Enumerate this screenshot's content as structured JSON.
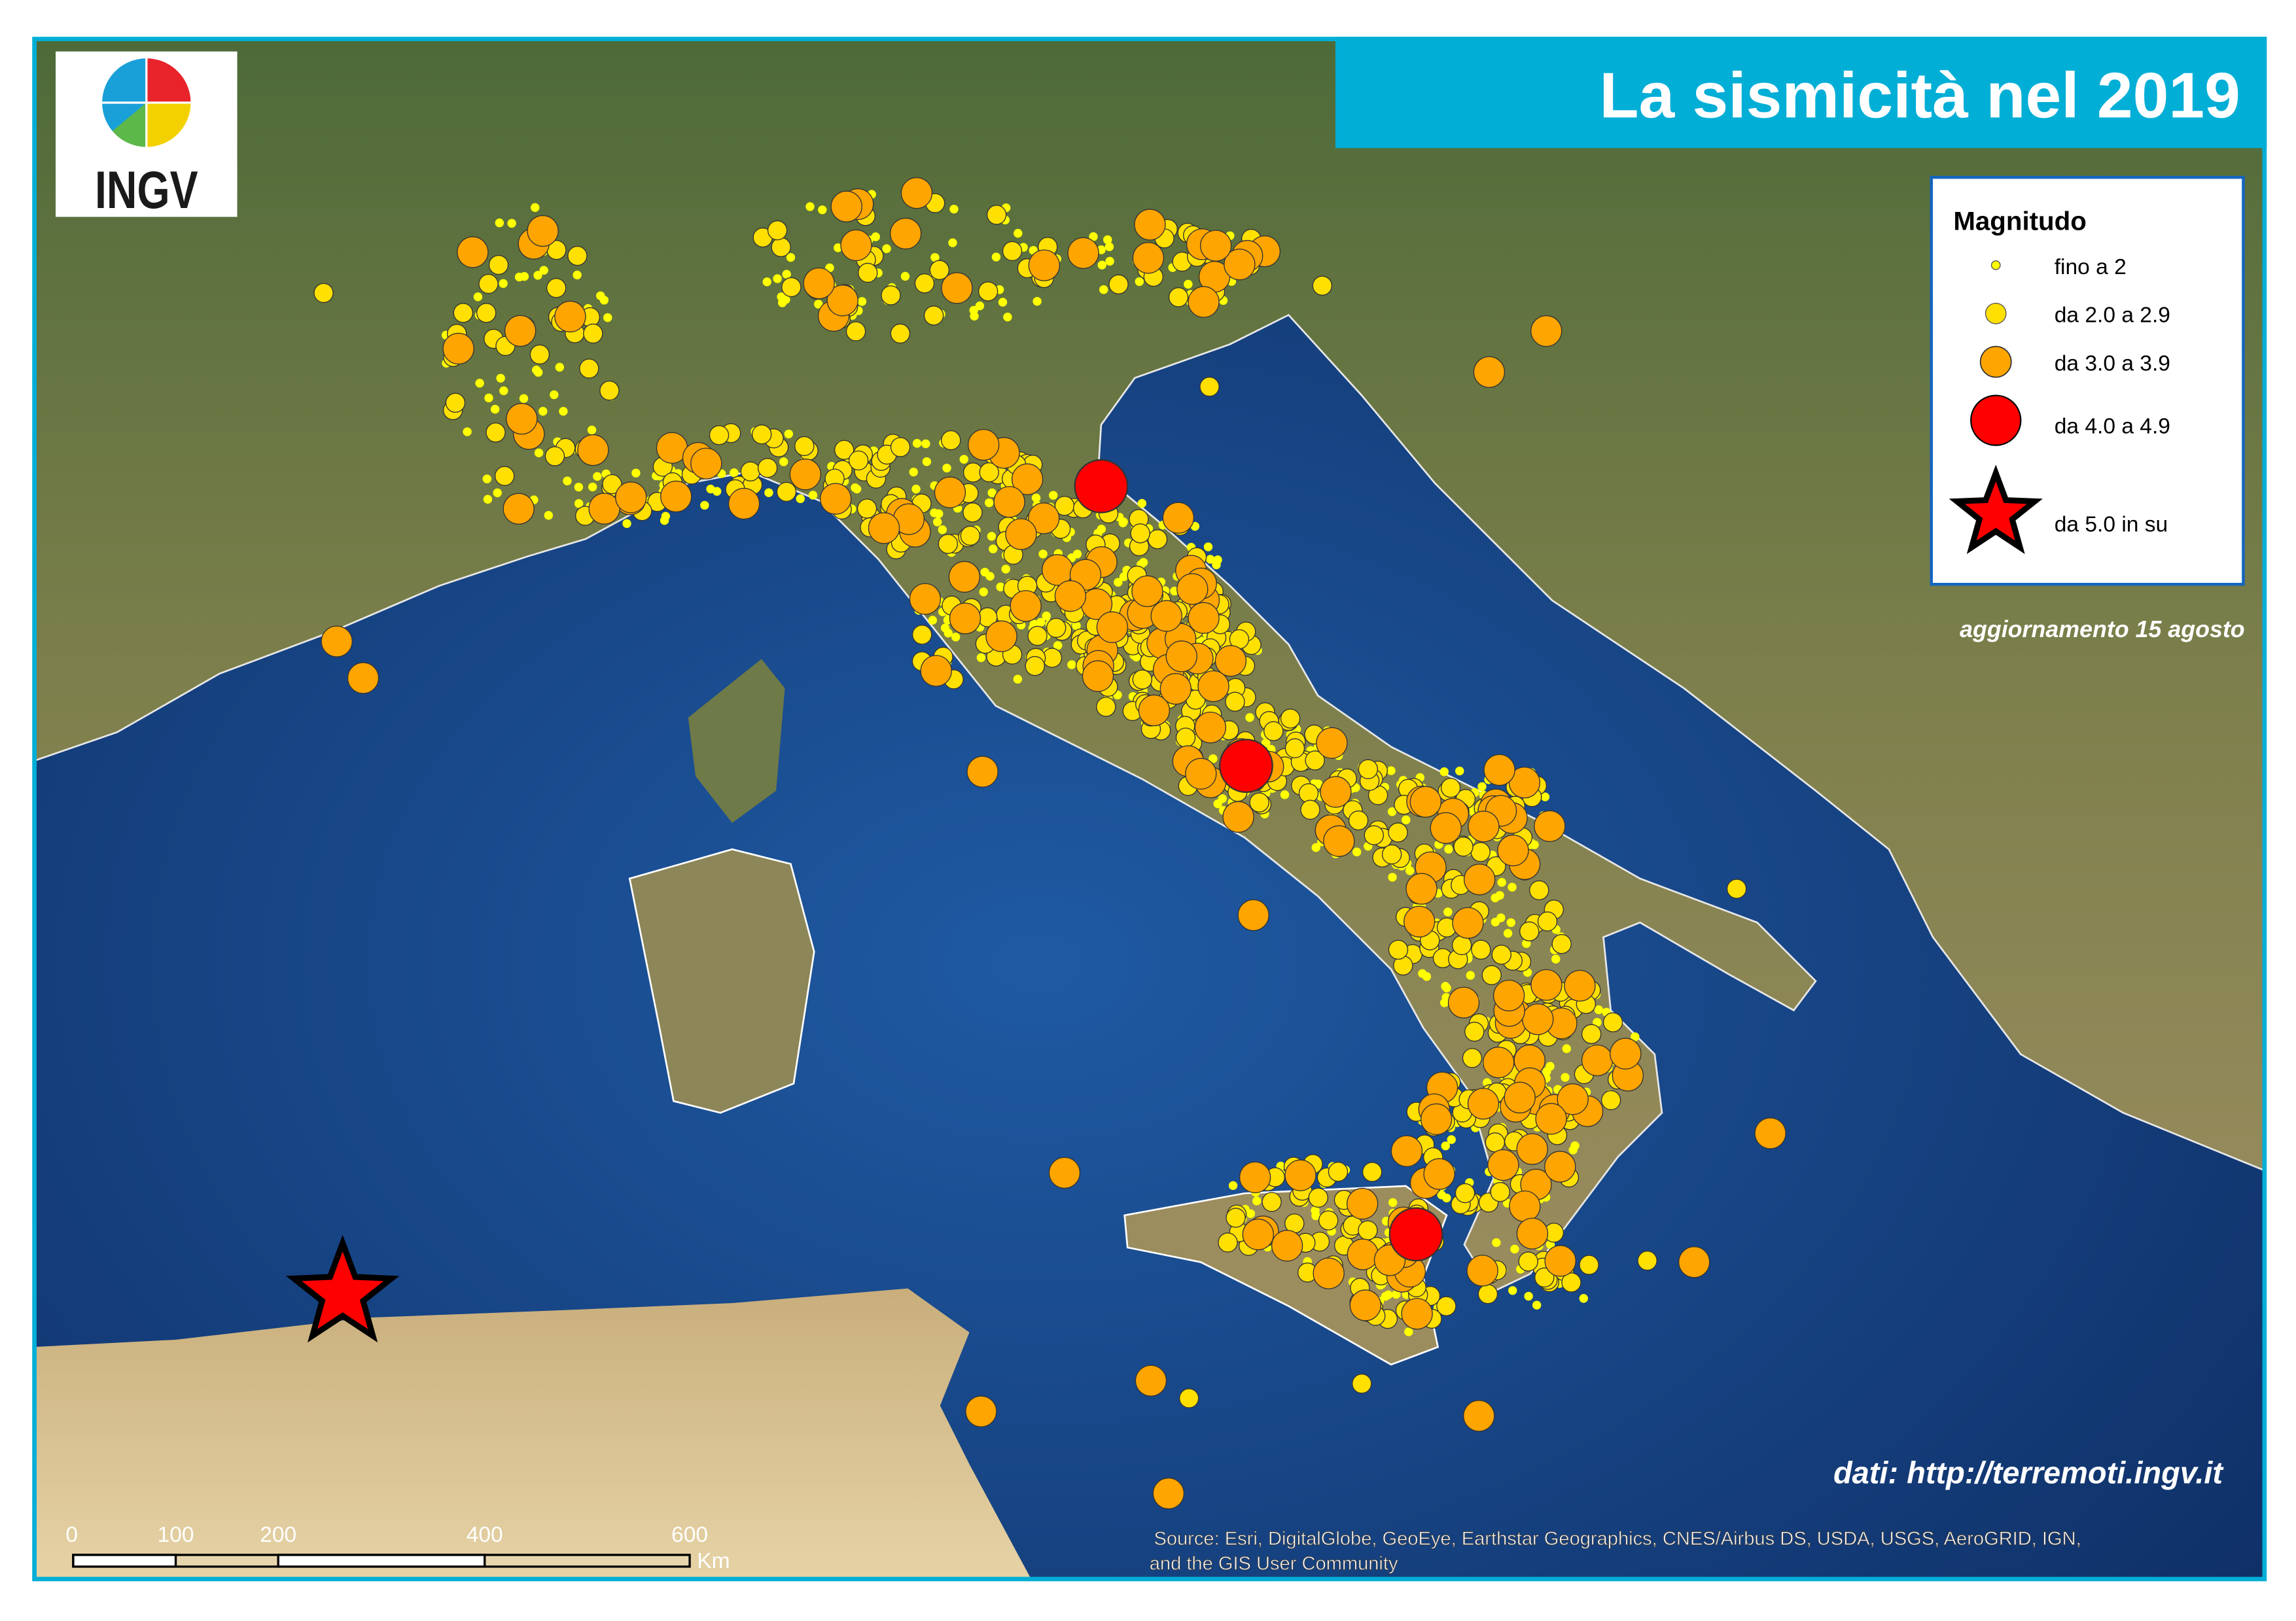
{
  "title": "La sismicità nel 2019",
  "logo": {
    "text": "INGV"
  },
  "legend": {
    "title": "Magnitudo",
    "items": [
      {
        "label": "fino a 2",
        "symbol": "small-circle",
        "color": "#ffff00"
      },
      {
        "label": "da 2.0 a 2.9",
        "symbol": "circle",
        "color": "#ffe000"
      },
      {
        "label": "da 3.0 a 3.9",
        "symbol": "circle",
        "color": "#ffa500"
      },
      {
        "label": "da 4.0 a 4.9",
        "symbol": "circle",
        "color": "#ff0000"
      },
      {
        "label": "da 5.0 in su",
        "symbol": "star",
        "color": "#ff0000"
      }
    ]
  },
  "update_note": "aggiornamento 15 agosto",
  "data_credit": "dati: http://terremoti.ingv.it",
  "source": {
    "line1": "Source: Esri, DigitalGlobe, GeoEye, Earthstar Geographics, CNES/Airbus DS, USDA, USGS, AeroGRID, IGN,",
    "line2": "and the GIS User Community"
  },
  "scale_bar": {
    "labels": [
      "0",
      "100",
      "200",
      "400",
      "600"
    ],
    "unit": "Km"
  },
  "colors": {
    "frame": "#00aed6",
    "sea": "#1c4d8f",
    "land": "#8a8a55"
  }
}
